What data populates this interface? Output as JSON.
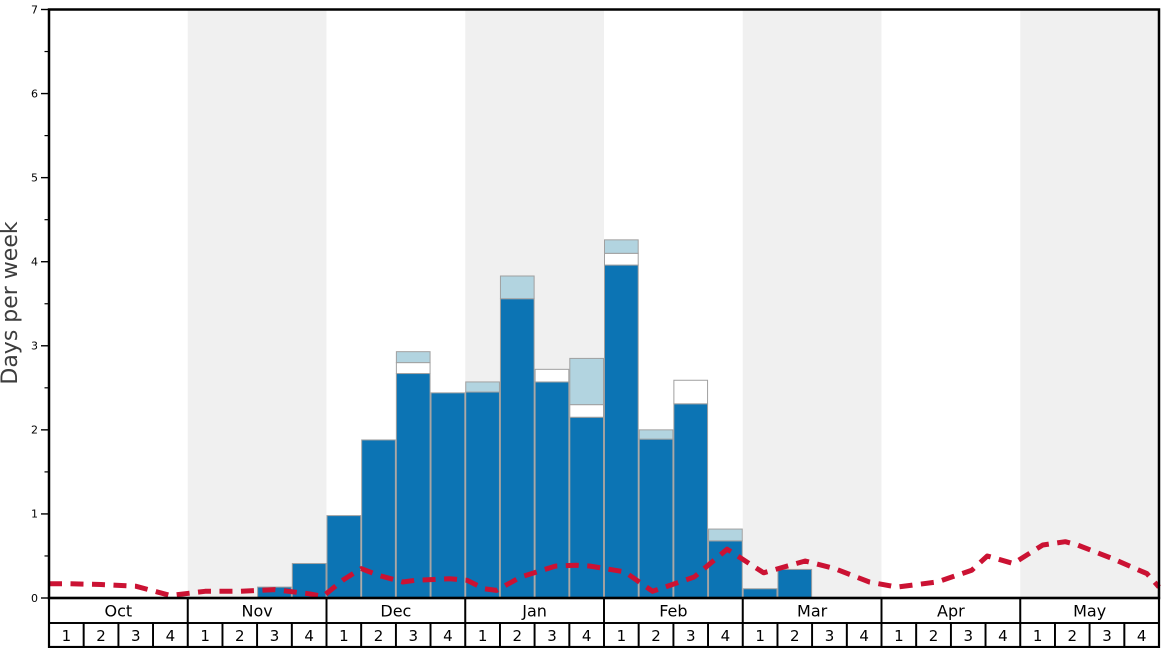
{
  "chart_data": {
    "type": "bar",
    "title": "",
    "xlabel": "",
    "ylabel": "Days per week",
    "ylim": [
      0,
      7
    ],
    "yticks": [
      "0",
      "1",
      "2",
      "3",
      "4",
      "5",
      "6",
      "7"
    ],
    "minor_tick_step": 0.5,
    "grid": false,
    "legend": "none",
    "months": [
      "Oct",
      "Nov",
      "Dec",
      "Jan",
      "Feb",
      "Mar",
      "Apr",
      "May"
    ],
    "week_labels": [
      "1",
      "2",
      "3",
      "4"
    ],
    "weeks_per_month": 4,
    "shaded_month_indices": [
      1,
      3,
      5,
      7
    ],
    "band_color": "#f0f0f0",
    "bar_border_color": "#a0a0a0",
    "frame_color": "#000000",
    "series": [
      {
        "name": "heavy-snow-dark-blue",
        "color": "#0c74b4",
        "values": [
          0,
          0,
          0,
          0,
          0,
          0,
          0.13,
          0.41,
          0.98,
          1.88,
          2.67,
          2.44,
          2.45,
          3.56,
          2.57,
          2.15,
          3.96,
          1.89,
          2.31,
          0.68,
          0.11,
          0.34,
          0,
          0,
          0,
          0,
          0,
          0,
          0,
          0,
          0,
          0
        ]
      },
      {
        "name": "moderate-snow-white",
        "color": "#ffffff",
        "values": [
          0,
          0,
          0,
          0,
          0,
          0,
          0,
          0,
          0,
          0,
          0.13,
          0,
          0,
          0,
          0.15,
          0.15,
          0.14,
          0,
          0.28,
          0,
          0,
          0,
          0,
          0,
          0,
          0,
          0,
          0,
          0,
          0,
          0,
          0
        ]
      },
      {
        "name": "light-snow-light-blue",
        "color": "#b2d4e0",
        "values": [
          0,
          0,
          0,
          0,
          0,
          0,
          0,
          0,
          0,
          0,
          0.13,
          0,
          0.12,
          0.27,
          0,
          0.55,
          0.16,
          0.11,
          0,
          0.14,
          0,
          0,
          0,
          0,
          0,
          0,
          0,
          0,
          0,
          0,
          0,
          0
        ]
      }
    ],
    "red_dashed_line": {
      "name": "average-red-dashed-line",
      "color": "#cb1233",
      "dash": [
        13,
        8.5
      ],
      "width": 5,
      "points_week_value": [
        [
          0.0,
          0.17
        ],
        [
          0.5,
          0.17
        ],
        [
          1.5,
          0.16
        ],
        [
          2.5,
          0.14
        ],
        [
          3.5,
          0.03
        ],
        [
          4.5,
          0.08
        ],
        [
          5.5,
          0.08
        ],
        [
          6.5,
          0.1
        ],
        [
          7.5,
          0.05
        ],
        [
          7.9,
          0.02
        ],
        [
          8.5,
          0.22
        ],
        [
          9.0,
          0.35
        ],
        [
          9.5,
          0.27
        ],
        [
          10.2,
          0.19
        ],
        [
          10.55,
          0.21
        ],
        [
          11.55,
          0.23
        ],
        [
          12.05,
          0.21
        ],
        [
          12.55,
          0.11
        ],
        [
          12.9,
          0.09
        ],
        [
          13.6,
          0.25
        ],
        [
          14.6,
          0.38
        ],
        [
          15.2,
          0.39
        ],
        [
          15.6,
          0.38
        ],
        [
          16.6,
          0.31
        ],
        [
          17.4,
          0.08
        ],
        [
          18.6,
          0.25
        ],
        [
          19.55,
          0.58
        ],
        [
          20.6,
          0.3
        ],
        [
          21.8,
          0.44
        ],
        [
          22.65,
          0.35
        ],
        [
          23.65,
          0.19
        ],
        [
          24.45,
          0.13
        ],
        [
          25.6,
          0.19
        ],
        [
          26.6,
          0.33
        ],
        [
          27.05,
          0.5
        ],
        [
          27.8,
          0.41
        ],
        [
          28.65,
          0.63
        ],
        [
          29.3,
          0.67
        ],
        [
          29.65,
          0.63
        ],
        [
          30.65,
          0.47
        ],
        [
          31.65,
          0.29
        ],
        [
          32.0,
          0.13
        ]
      ]
    }
  }
}
